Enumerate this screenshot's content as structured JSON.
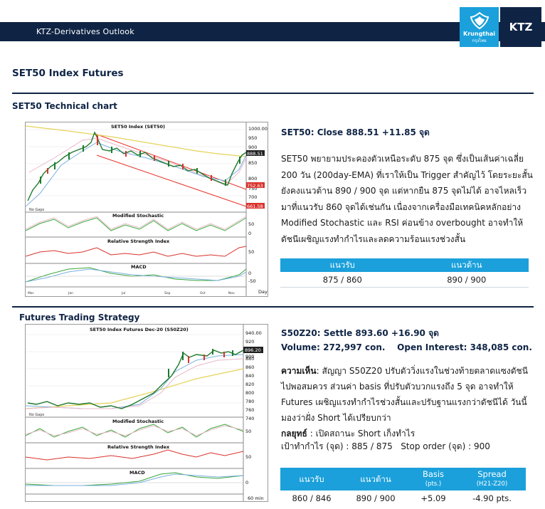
{
  "header": {
    "title": "KTZ-Derivatives Outlook",
    "logo_name": "Krungthai",
    "logo_sub": "กรุงไทย",
    "brand": "KTZ",
    "brand_color": "#0f2445",
    "accent_color": "#1ba0db"
  },
  "page": {
    "heading": "SET50 Index Futures"
  },
  "set50": {
    "section_title": "SET50 Technical chart",
    "chart_title": "SET50 Index (SET50)",
    "price_axis": [
      "1000.00",
      "950",
      "900",
      "850",
      "800",
      "750",
      "700",
      "650"
    ],
    "price_tags": [
      "888.51",
      "752.63",
      "661.58"
    ],
    "left_labels": [
      "Mar",
      "Jan",
      "Jul",
      "Sep",
      "Oct",
      "Nov"
    ],
    "stoch_title": "Modified Stochastic",
    "rsi_title": "Relative Strength Index",
    "macd_title": "MACD",
    "stoch_axis": [
      "50",
      "0"
    ],
    "rsi_axis": [
      "50"
    ],
    "macd_axis": [
      "0",
      "-50"
    ],
    "x_axis_unit": "Day",
    "no_gaps": "No Gaps",
    "close_line": "SET50: Close 888.51 +11.85 จุด",
    "paragraph": "SET50 พยายามประคองตัวเหนือระดับ 875 จุด ซึ่งเป็นเส้นค่าเฉลี่ย 200 วัน (200day-EMA) ที่เราให้เป็น Trigger สำคัญไว้ โดยระยะสั้นยังคงแนวต้าน 890 / 900 จุด แต่หากยืน 875 จุดไม่ได้ อาจไหลเร็วมาที่แนวรับ 860 จุดได้เช่นกัน เนื่องจากเครื่องมือเทคนิคหลักอย่าง Modified Stochastic และ RSI ค่อนข้าง overbought อาจทำให้ดัชนีเผชิญแรงทำกำไรและลดความร้อนแรงช่วงสั้น",
    "levels": {
      "support_label": "แนวรับ",
      "resistance_label": "แนวต้าน",
      "support_value": "875 / 860",
      "resistance_value": "890 / 900"
    }
  },
  "futures": {
    "section_title": "Futures Trading Strategy",
    "chart_title": "SET50 Index Futures Dec-20 (S50Z20)",
    "price_axis": [
      "940.00",
      "920",
      "900",
      "880",
      "860",
      "840",
      "820",
      "800",
      "780",
      "760",
      "740"
    ],
    "price_tag": "896.20",
    "stoch_title": "Modified Stochastic",
    "rsi_title": "Relative Strength Index",
    "macd_title": "MACD",
    "stoch_axis": [
      "50"
    ],
    "rsi_axis": [
      "50"
    ],
    "macd_axis": [
      "0"
    ],
    "x_axis_unit": "60 min",
    "no_gaps": "No Gaps",
    "settle_line": "S50Z20: Settle 893.60 +16.90 จุด",
    "volume_line": "Volume: 272,997 con.    Open Interest: 348,085 con.",
    "view_label": "ความเห็น",
    "view_text": ": สัญญา S50Z20 ปรับตัววิ่งแรงในช่วงท้ายตลาดแซงดัชนีไปพอสมควร ส่วนค่า basis ที่ปรับตัวบวกแรงถึง 5 จุด อาจทำให้ Futures เผชิญแรงทำกำไรช่วงสั้นและปรับฐานแรงกว่าดัชนีได้ วันนี้มองว่าฝั่ง Short ได้เปรียบกว่า",
    "strategy_label": "กลยุทธ์",
    "strategy_text": " : เปิดสถานะ Short เก็งทำไร",
    "target_line": "เป้าทำกำไร (จุด) : 885 / 875   Stop order (จุด) : 900",
    "levels": {
      "support_label": "แนวรับ",
      "resistance_label": "แนวต้าน",
      "basis_label": "Basis",
      "basis_unit": "(pts.)",
      "spread_label": "Spread",
      "spread_unit": "(H21-Z20)",
      "support_value": "860 / 846",
      "resistance_value": "890 / 900",
      "basis_value": "+5.09",
      "spread_value": "-4.90 pts."
    }
  }
}
